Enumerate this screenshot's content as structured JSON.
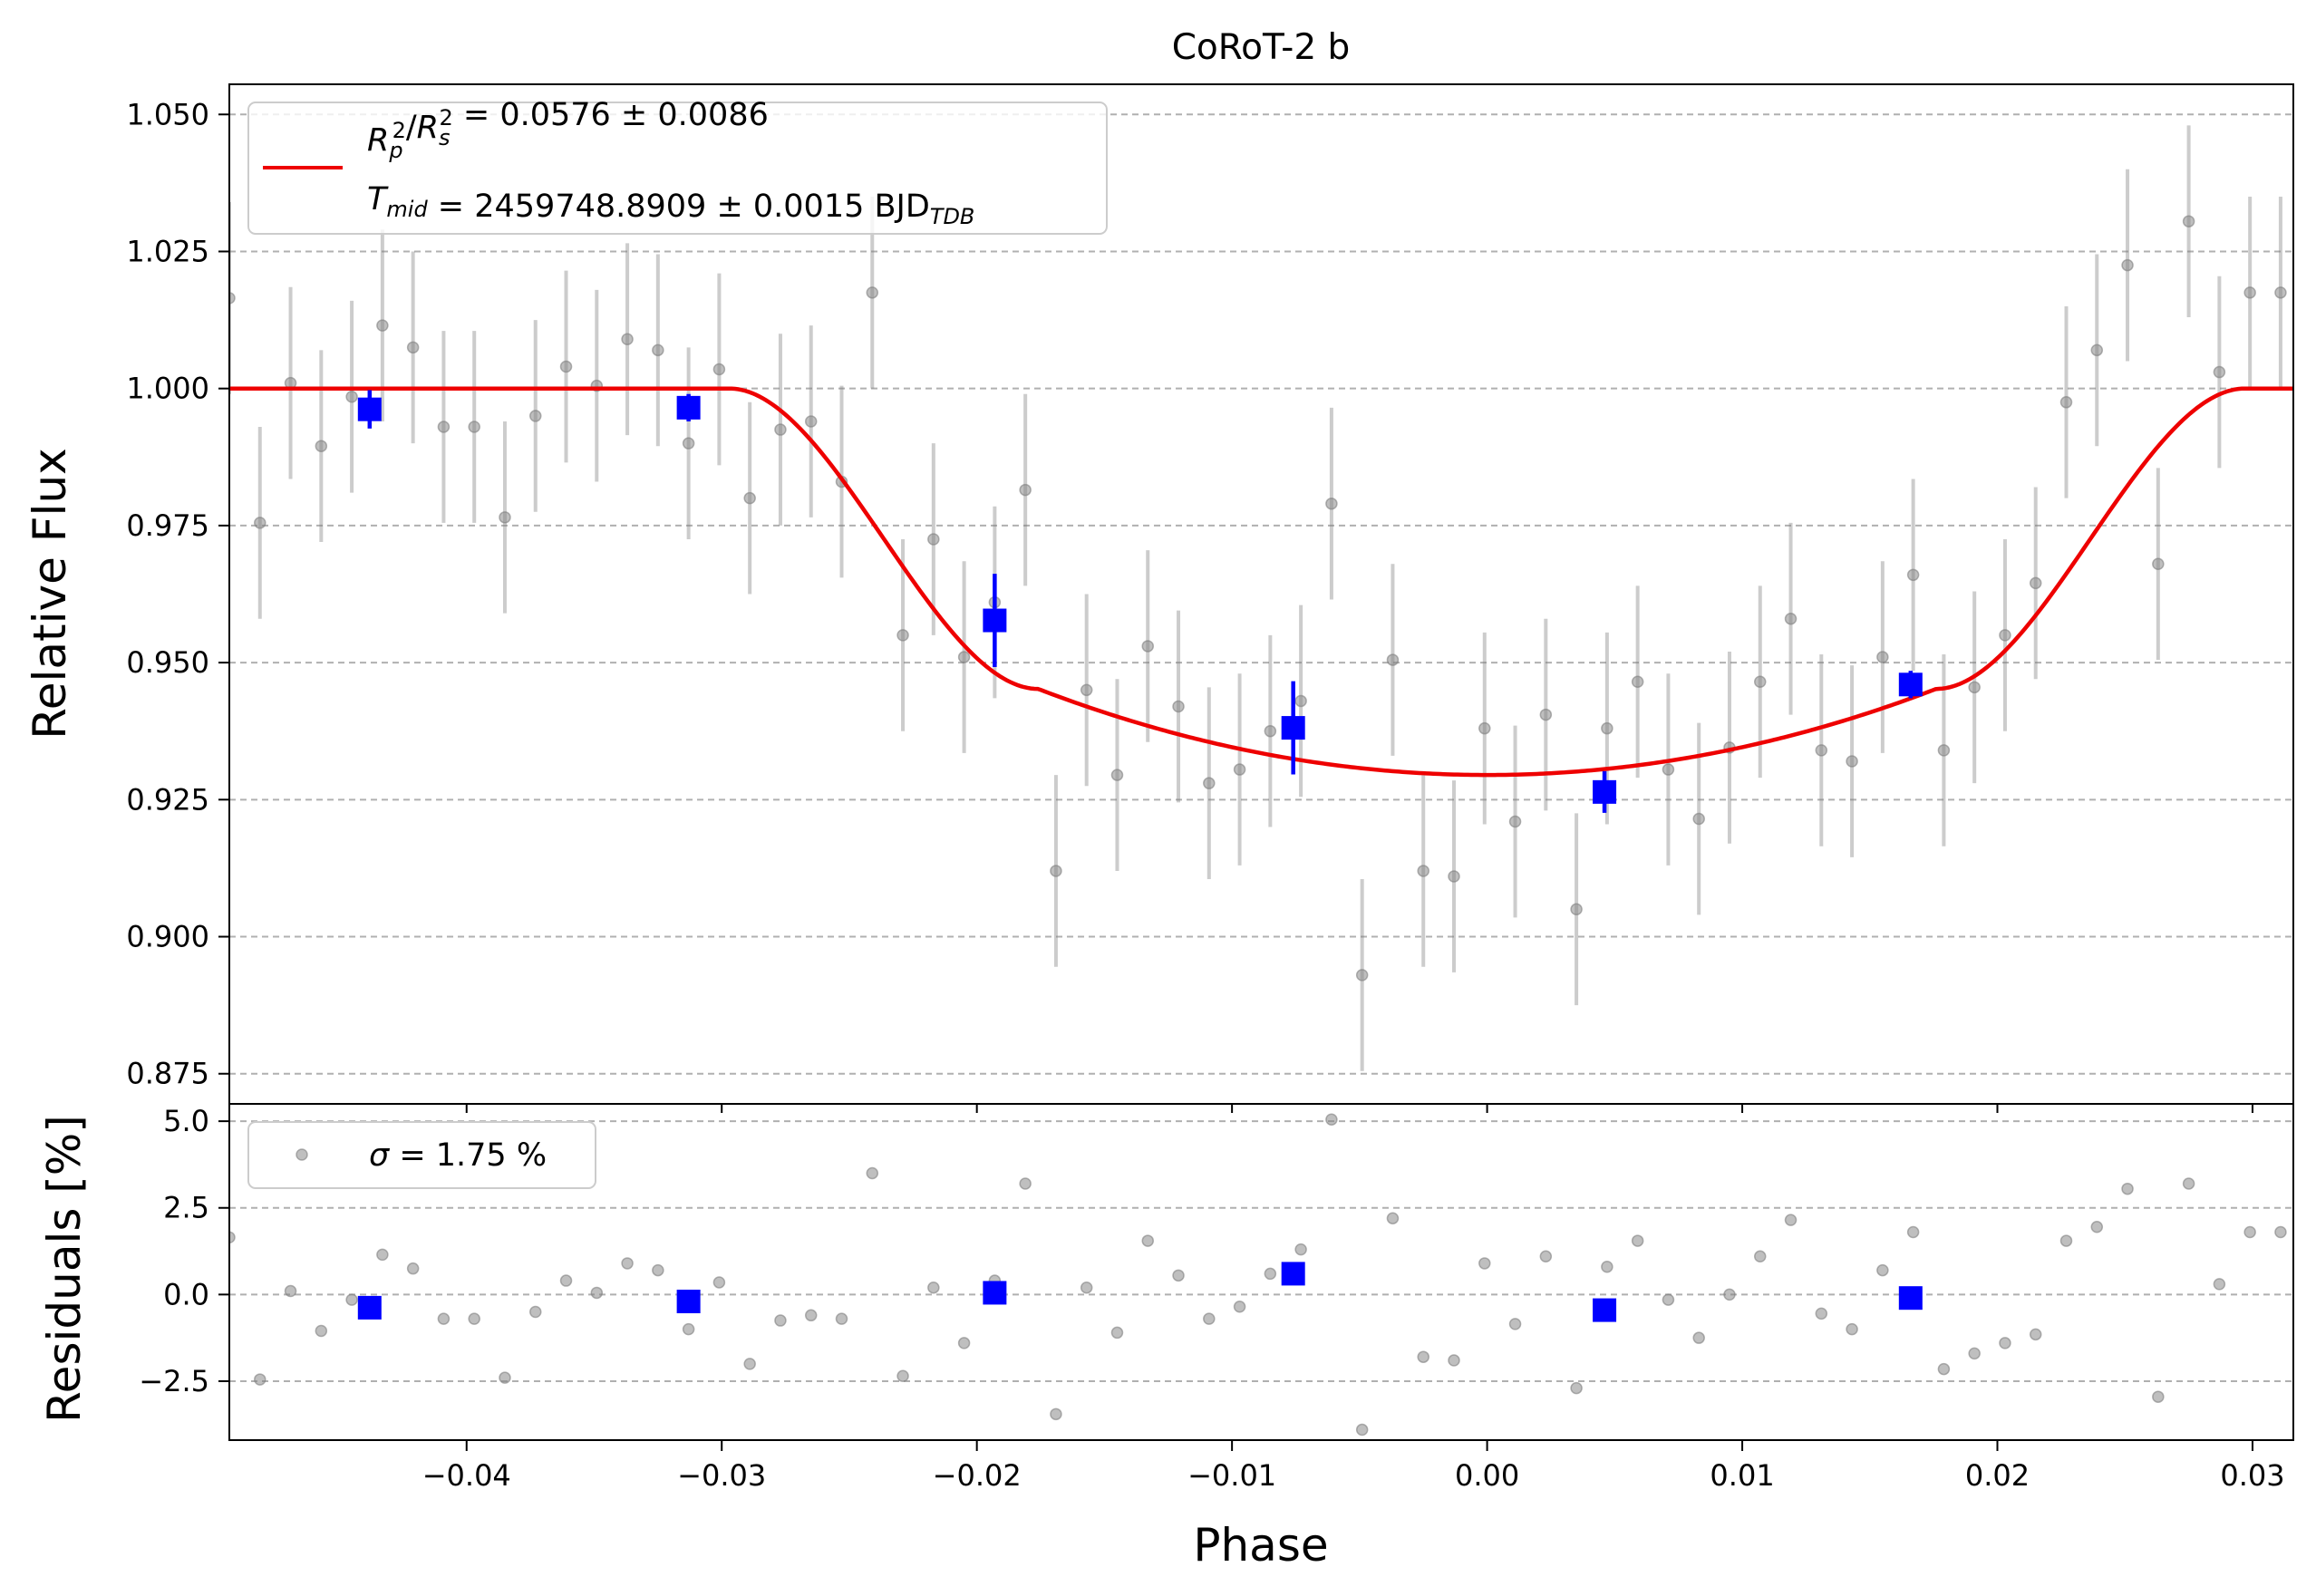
{
  "chart_data": {
    "type": "scatter",
    "title": "CoRoT-2 b",
    "xlabel": "Phase",
    "xlim": [
      -0.0493,
      0.0316
    ],
    "x_ticks": [
      "−0.04",
      "−0.03",
      "−0.02",
      "−0.01",
      "0.00",
      "0.01",
      "0.02",
      "0.03"
    ],
    "x_tick_values": [
      -0.04,
      -0.03,
      -0.02,
      -0.01,
      0.0,
      0.01,
      0.02,
      0.03
    ],
    "grid": "horizontal dashed",
    "colors": {
      "model": "#ee0000",
      "raw": "#808080",
      "binned": "#0000ff",
      "grid": "#b0b0b0"
    },
    "top_panel": {
      "ylabel": "Relative Flux",
      "ylim": [
        0.8695,
        1.0555
      ],
      "y_ticks": [
        "0.875",
        "0.900",
        "0.925",
        "0.950",
        "0.975",
        "1.000",
        "1.025",
        "1.050"
      ],
      "y_tick_values": [
        0.875,
        0.9,
        0.925,
        0.95,
        0.975,
        1.0,
        1.025,
        1.05
      ],
      "legend": {
        "placement": "upper-left",
        "entry_line1_parts": [
          {
            "t": "R",
            "style": "italic"
          },
          {
            "t": "p",
            "style": "sub-italic"
          },
          {
            "t": "2",
            "style": "sup"
          },
          {
            "t": "/",
            "style": "normal"
          },
          {
            "t": "R",
            "style": "italic"
          },
          {
            "t": "s",
            "style": "sub-italic"
          },
          {
            "t": "2",
            "style": "sup"
          },
          {
            "t": " = 0.0576 ± 0.0086",
            "style": "normal"
          }
        ],
        "entry_line2_parts": [
          {
            "t": "T",
            "style": "italic"
          },
          {
            "t": "mid",
            "style": "sub-italic"
          },
          {
            "t": " = 2459748.8909 ± 0.0015 BJD",
            "style": "normal"
          },
          {
            "t": "TDB",
            "style": "sub-italic"
          }
        ]
      },
      "model": {
        "depth": 0.0576,
        "flux_min": 0.9295,
        "t1": -0.0297,
        "t2": -0.0176,
        "t3": 0.0176,
        "t4": 0.0297,
        "flux_at_ingress_end": 0.9452
      },
      "raw_points": {
        "phase": [
          -0.0493,
          -0.0481,
          -0.0469,
          -0.0457,
          -0.0445,
          -0.0433,
          -0.0421,
          -0.0409,
          -0.0397,
          -0.0385,
          -0.0373,
          -0.0361,
          -0.0349,
          -0.0337,
          -0.0325,
          -0.0313,
          -0.0301,
          -0.0289,
          -0.0277,
          -0.0265,
          -0.0253,
          -0.0241,
          -0.0229,
          -0.0217,
          -0.0205,
          -0.0193,
          -0.0181,
          -0.0169,
          -0.0157,
          -0.0145,
          -0.0133,
          -0.0121,
          -0.0109,
          -0.0097,
          -0.0085,
          -0.0073,
          -0.0061,
          -0.0049,
          -0.0037,
          -0.0025,
          -0.0013,
          -0.0001,
          0.0011,
          0.0023,
          0.0035,
          0.0047,
          0.0059,
          0.0071,
          0.0083,
          0.0095,
          0.0107,
          0.0119,
          0.0131,
          0.0143,
          0.0155,
          0.0167,
          0.0179,
          0.0191,
          0.0203,
          0.0215,
          0.0227,
          0.0239,
          0.0251,
          0.0263,
          0.0275,
          0.0287,
          0.0299,
          0.0311
        ],
        "flux": [
          1.0165,
          0.9755,
          1.001,
          0.9895,
          0.9985,
          1.0115,
          1.0075,
          0.993,
          0.993,
          0.9765,
          0.995,
          1.004,
          1.0005,
          1.009,
          1.007,
          0.99,
          1.0035,
          0.98,
          0.9925,
          0.994,
          0.983,
          1.0175,
          0.955,
          0.9725,
          0.951,
          0.961,
          0.9815,
          0.912,
          0.945,
          0.9295,
          0.953,
          0.942,
          0.928,
          0.9305,
          0.9375,
          0.943,
          0.979,
          0.893,
          0.9505,
          0.912,
          0.911,
          0.938,
          0.921,
          0.9405,
          0.905,
          0.938,
          0.9465,
          0.9305,
          0.9215,
          0.9345,
          0.9465,
          0.958,
          0.934,
          0.932,
          0.951,
          0.966,
          0.934,
          0.9455,
          0.955,
          0.9645,
          0.9975,
          1.007,
          1.0225,
          0.968,
          1.0305,
          1.003,
          1.0175,
          1.0175
        ],
        "error": 0.0175
      },
      "binned_points": {
        "phase": [
          -0.0438,
          -0.0313,
          -0.0193,
          -0.0076,
          0.0046,
          0.0166
        ],
        "flux": [
          0.9962,
          0.9965,
          0.9577,
          0.9381,
          0.9264,
          0.946
        ],
        "error": [
          0.0035,
          0.0025,
          0.0085,
          0.0085,
          0.0038,
          0.0025
        ]
      }
    },
    "bottom_panel": {
      "ylabel": "Residuals [%]",
      "ylim": [
        -4.2,
        5.5
      ],
      "y_ticks": [
        "−2.5",
        "0.0",
        "2.5",
        "5.0"
      ],
      "y_tick_values": [
        -2.5,
        0.0,
        2.5,
        5.0
      ],
      "legend": {
        "placement": "upper-left",
        "entry_parts": [
          {
            "t": "σ",
            "style": "italic"
          },
          {
            "t": " = 1.75 %",
            "style": "normal"
          }
        ]
      },
      "raw_residuals": [
        1.65,
        -2.45,
        0.1,
        -1.05,
        -0.15,
        1.15,
        0.75,
        -0.7,
        -0.7,
        -2.4,
        -0.5,
        0.4,
        0.05,
        0.9,
        0.7,
        -1.0,
        0.35,
        -2.0,
        -0.75,
        -0.6,
        -0.7,
        3.5,
        -2.35,
        0.2,
        -1.4,
        0.4,
        3.2,
        -3.45,
        0.2,
        -1.1,
        1.55,
        0.55,
        -0.7,
        -0.35,
        0.6,
        1.3,
        5.05,
        -3.9,
        2.2,
        -1.8,
        -1.9,
        0.9,
        -0.85,
        1.1,
        -2.7,
        0.8,
        1.55,
        -0.15,
        -1.25,
        0.0,
        1.1,
        2.15,
        -0.55,
        -1.0,
        0.7,
        1.8,
        -2.15,
        -1.7,
        -1.4,
        -1.15,
        1.55,
        1.95,
        3.05,
        -2.95,
        3.2,
        0.3,
        1.8,
        1.8
      ],
      "binned_residuals": [
        -0.38,
        -0.2,
        0.05,
        0.6,
        -0.45,
        -0.1
      ]
    }
  }
}
